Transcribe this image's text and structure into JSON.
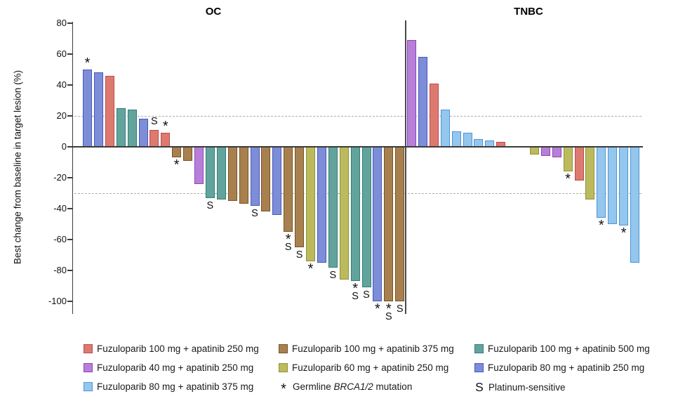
{
  "chart_data": {
    "type": "bar",
    "subtype": "waterfall",
    "title": "",
    "ylabel": "Best change from baseline in target lesion (%)",
    "ylim": [
      -108,
      80
    ],
    "y_ticks": [
      80,
      60,
      40,
      20,
      0,
      -20,
      -40,
      -60,
      -80,
      -100
    ],
    "reference_lines": [
      20,
      -30
    ],
    "grid": false,
    "legend_position": "bottom",
    "markers": {
      "brca": {
        "glyph": "*",
        "label": "Germline BRCA1/2 mutation"
      },
      "plat": {
        "glyph": "S",
        "label": "Platinum-sensitive"
      }
    },
    "series": {
      "f100_a250": {
        "label": "Fuzuloparib 100 mg + apatinib 250 mg",
        "fill": "#DD7A70",
        "stroke": "#BC4A4E"
      },
      "f40_a250": {
        "label": "Fuzuloparib 40 mg + apatinib 250 mg",
        "fill": "#B77FD9",
        "stroke": "#8F44B4"
      },
      "f80_a375": {
        "label": "Fuzuloparib 80 mg + apatinib 375 mg",
        "fill": "#94C7ED",
        "stroke": "#4D93D8"
      },
      "f100_a375": {
        "label": "Fuzuloparib 100 mg + apatinib 375 mg",
        "fill": "#A8804F",
        "stroke": "#77541F"
      },
      "f60_a250": {
        "label": "Fuzuloparib 60 mg + apatinib 250 mg",
        "fill": "#BCBA5E",
        "stroke": "#8F9431"
      },
      "f100_a500": {
        "label": "Fuzuloparib 100 mg + apatinib 500 mg",
        "fill": "#62A49D",
        "stroke": "#2F7F72"
      },
      "f80_a250": {
        "label": "Fuzuloparib 80 mg + apatinib 250 mg",
        "fill": "#7D8DD8",
        "stroke": "#4558BE"
      }
    },
    "groups": [
      {
        "title": "OC",
        "bars": [
          {
            "v": 50,
            "s": "f80_a250",
            "m": [
              "brca"
            ]
          },
          {
            "v": 48,
            "s": "f80_a250"
          },
          {
            "v": 46,
            "s": "f100_a250"
          },
          {
            "v": 25,
            "s": "f100_a500"
          },
          {
            "v": 24,
            "s": "f100_a500"
          },
          {
            "v": 18,
            "s": "f80_a250"
          },
          {
            "v": 11,
            "s": "f100_a250",
            "m": [
              "plat"
            ]
          },
          {
            "v": 9,
            "s": "f100_a250",
            "m": [
              "brca"
            ]
          },
          {
            "v": -7,
            "s": "f100_a375",
            "m": [
              "brca"
            ]
          },
          {
            "v": -9,
            "s": "f100_a375"
          },
          {
            "v": -24,
            "s": "f40_a250"
          },
          {
            "v": -33,
            "s": "f100_a500",
            "m": [
              "plat"
            ]
          },
          {
            "v": -34,
            "s": "f100_a500"
          },
          {
            "v": -35,
            "s": "f100_a375"
          },
          {
            "v": -37,
            "s": "f100_a375"
          },
          {
            "v": -38,
            "s": "f80_a250",
            "m": [
              "plat"
            ]
          },
          {
            "v": -42,
            "s": "f100_a375"
          },
          {
            "v": -44,
            "s": "f80_a250"
          },
          {
            "v": -55,
            "s": "f100_a375",
            "m": [
              "brca",
              "plat"
            ]
          },
          {
            "v": -65,
            "s": "f100_a375",
            "m": [
              "plat"
            ]
          },
          {
            "v": -74,
            "s": "f60_a250",
            "m": [
              "brca"
            ]
          },
          {
            "v": -75,
            "s": "f80_a250"
          },
          {
            "v": -78,
            "s": "f100_a500",
            "m": [
              "plat"
            ]
          },
          {
            "v": -86,
            "s": "f60_a250"
          },
          {
            "v": -87,
            "s": "f100_a500",
            "m": [
              "brca",
              "plat"
            ]
          },
          {
            "v": -91,
            "s": "f100_a500",
            "m": [
              "plat"
            ]
          },
          {
            "v": -100,
            "s": "f80_a250",
            "m": [
              "brca"
            ]
          },
          {
            "v": -100,
            "s": "f100_a375",
            "m": [
              "brca",
              "plat"
            ]
          },
          {
            "v": -100,
            "s": "f100_a375",
            "m": [
              "plat"
            ]
          }
        ]
      },
      {
        "title": "TNBC",
        "bars": [
          {
            "v": 69,
            "s": "f40_a250"
          },
          {
            "v": 58,
            "s": "f80_a250"
          },
          {
            "v": 41,
            "s": "f100_a250"
          },
          {
            "v": 24,
            "s": "f80_a375"
          },
          {
            "v": 10,
            "s": "f80_a375"
          },
          {
            "v": 9,
            "s": "f80_a375"
          },
          {
            "v": 5,
            "s": "f80_a375"
          },
          {
            "v": 4,
            "s": "f80_a375"
          },
          {
            "v": 3,
            "s": "f100_a250"
          },
          {
            "v": 0
          },
          {
            "v": 0
          },
          {
            "v": -5,
            "s": "f60_a250"
          },
          {
            "v": -6,
            "s": "f40_a250"
          },
          {
            "v": -7,
            "s": "f40_a250"
          },
          {
            "v": -16,
            "s": "f60_a250",
            "m": [
              "brca"
            ]
          },
          {
            "v": -22,
            "s": "f100_a250"
          },
          {
            "v": -34,
            "s": "f60_a250"
          },
          {
            "v": -46,
            "s": "f80_a375",
            "m": [
              "brca"
            ]
          },
          {
            "v": -50,
            "s": "f80_a375"
          },
          {
            "v": -51,
            "s": "f80_a375",
            "m": [
              "brca"
            ]
          },
          {
            "v": -75,
            "s": "f80_a375"
          }
        ]
      }
    ]
  },
  "legend": {
    "columns": [
      [
        {
          "type": "series",
          "series": "f100_a250",
          "label": "Fuzuloparib 100 mg + apatinib 250 mg"
        },
        {
          "type": "series",
          "series": "f40_a250",
          "label": "Fuzuloparib 40 mg + apatinib 250 mg"
        },
        {
          "type": "series",
          "series": "f80_a375",
          "label": "Fuzuloparib 80 mg + apatinib 375 mg"
        }
      ],
      [
        {
          "type": "series",
          "series": "f100_a375",
          "label": "Fuzuloparib 100 mg + apatinib 375 mg"
        },
        {
          "type": "series",
          "series": "f60_a250",
          "label": "Fuzuloparib 60 mg + apatinib 250 mg"
        },
        {
          "type": "marker",
          "marker": "brca",
          "label_pre": "Germline ",
          "label_italic": "BRCA1/2",
          "label_post": " mutation"
        }
      ],
      [
        {
          "type": "series",
          "series": "f100_a500",
          "label": "Fuzuloparib 100 mg + apatinib 500 mg"
        },
        {
          "type": "series",
          "series": "f80_a250",
          "label": "Fuzuloparib 80 mg + apatinib 250 mg"
        },
        {
          "type": "marker",
          "marker": "plat",
          "label": "Platinum-sensitive"
        }
      ]
    ]
  }
}
